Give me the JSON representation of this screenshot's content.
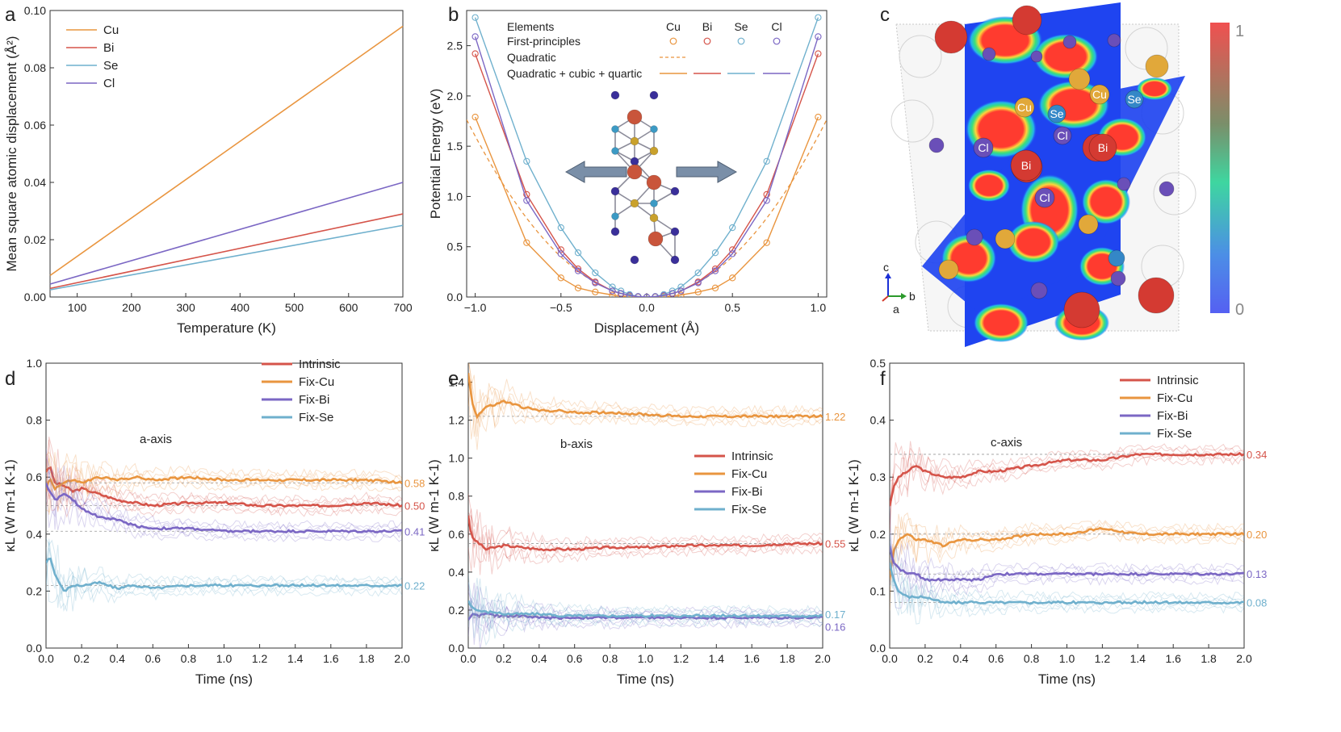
{
  "panels": {
    "a": {
      "label": "a"
    },
    "b": {
      "label": "b"
    },
    "c": {
      "label": "c"
    },
    "d": {
      "label": "d"
    },
    "e": {
      "label": "e"
    },
    "f": {
      "label": "f"
    }
  },
  "colors": {
    "Cu": "#e9953f",
    "Bi": "#d5544a",
    "Se": "#6fb0cd",
    "Cl": "#7b67c4"
  },
  "chart_data": [
    {
      "id": "a",
      "type": "line",
      "xlabel": "Temperature (K)",
      "ylabel": "Mean square atomic displacement (Å²)",
      "xlim": [
        50,
        700
      ],
      "ylim": [
        0,
        0.1
      ],
      "xticks": [
        100,
        200,
        300,
        400,
        500,
        600,
        700
      ],
      "yticks": [
        0.0,
        0.02,
        0.04,
        0.06,
        0.08,
        0.1
      ],
      "ytick_labels": [
        "0.00",
        "0.02",
        "0.04",
        "0.06",
        "0.08",
        "0.10"
      ],
      "series": [
        {
          "name": "Cu",
          "x": [
            50,
            700
          ],
          "y": [
            0.0075,
            0.0945
          ]
        },
        {
          "name": "Bi",
          "x": [
            50,
            700
          ],
          "y": [
            0.003,
            0.029
          ]
        },
        {
          "name": "Se",
          "x": [
            50,
            700
          ],
          "y": [
            0.0025,
            0.025
          ]
        },
        {
          "name": "Cl",
          "x": [
            50,
            700
          ],
          "y": [
            0.0045,
            0.04
          ]
        }
      ]
    },
    {
      "id": "b",
      "type": "line",
      "xlabel": "Displacement (Å)",
      "ylabel": "Potential Energy (eV)",
      "xlim": [
        -1.05,
        1.05
      ],
      "ylim": [
        0,
        2.85
      ],
      "xticks": [
        -1.0,
        -0.5,
        0.0,
        0.5,
        1.0
      ],
      "xtick_labels": [
        "−1.0",
        "−0.5",
        "0.0",
        "0.5",
        "1.0"
      ],
      "yticks": [
        0.0,
        0.5,
        1.0,
        1.5,
        2.0,
        2.5
      ],
      "ytick_labels": [
        "0.0",
        "0.5",
        "1.0",
        "1.5",
        "2.0",
        "2.5"
      ],
      "legend": {
        "header": "Elements",
        "columns": [
          "Cu",
          "Bi",
          "Se",
          "Cl"
        ],
        "rows": [
          "First-principles",
          "Quadratic",
          "Quadratic + cubic + quartic"
        ]
      },
      "quadratic_Cu": [
        -1.0,
        1.6,
        1.0,
        1.6
      ],
      "first_principles_x": [
        -1.0,
        -0.7,
        -0.5,
        -0.4,
        -0.3,
        -0.2,
        -0.15,
        -0.1,
        -0.05,
        0.0,
        0.05,
        0.1,
        0.15,
        0.2,
        0.3,
        0.4,
        0.5,
        0.7,
        1.0
      ],
      "series": [
        {
          "name": "Cu",
          "y": [
            1.79,
            0.54,
            0.19,
            0.09,
            0.05,
            0.02,
            0.01,
            0.005,
            0.002,
            0.0,
            0.002,
            0.005,
            0.01,
            0.02,
            0.05,
            0.09,
            0.19,
            0.54,
            1.79
          ]
        },
        {
          "name": "Bi",
          "y": [
            2.42,
            1.02,
            0.47,
            0.28,
            0.15,
            0.06,
            0.035,
            0.015,
            0.004,
            0.0,
            0.004,
            0.015,
            0.035,
            0.06,
            0.15,
            0.28,
            0.47,
            1.02,
            2.42
          ]
        },
        {
          "name": "Se",
          "y": [
            2.78,
            1.35,
            0.69,
            0.44,
            0.24,
            0.1,
            0.06,
            0.025,
            0.006,
            0.0,
            0.006,
            0.025,
            0.06,
            0.1,
            0.24,
            0.44,
            0.69,
            1.35,
            2.78
          ]
        },
        {
          "name": "Cl",
          "y": [
            2.59,
            0.96,
            0.43,
            0.26,
            0.14,
            0.06,
            0.035,
            0.015,
            0.004,
            0.0,
            0.004,
            0.015,
            0.035,
            0.06,
            0.14,
            0.26,
            0.43,
            0.96,
            2.59
          ]
        }
      ]
    },
    {
      "id": "c",
      "type": "heatmap",
      "colorbar_labels": [
        "1",
        "0"
      ],
      "atom_labels": [
        "Cu",
        "Se",
        "Cu",
        "Se",
        "Cl",
        "Cl",
        "Bi",
        "Bi",
        "Cl"
      ],
      "axes_labels": [
        "c",
        "b",
        "a"
      ]
    },
    {
      "id": "d",
      "type": "line",
      "annotation": "a-axis",
      "xlabel": "Time (ns)",
      "ylabel": "κL (W m-1 K-1)",
      "xlim": [
        0,
        2.0
      ],
      "ylim": [
        0,
        1.0
      ],
      "xticks": [
        0.0,
        0.2,
        0.4,
        0.6,
        0.8,
        1.0,
        1.2,
        1.4,
        1.6,
        1.8,
        2.0
      ],
      "xtick_labels": [
        "0.0",
        "0.2",
        "0.4",
        "0.6",
        "0.8",
        "1.0",
        "1.2",
        "1.4",
        "1.6",
        "1.8",
        "2.0"
      ],
      "yticks": [
        0.0,
        0.2,
        0.4,
        0.6,
        0.8,
        1.0
      ],
      "ytick_labels": [
        "0.0",
        "0.2",
        "0.4",
        "0.6",
        "0.8",
        "1.0"
      ],
      "x": [
        0.0,
        0.02,
        0.05,
        0.1,
        0.15,
        0.2,
        0.3,
        0.4,
        0.5,
        0.6,
        0.8,
        1.0,
        1.2,
        1.4,
        1.6,
        1.8,
        2.0
      ],
      "series": [
        {
          "name": "Intrinsic",
          "color": "Bi",
          "final": 0.5,
          "final_label": "0.50",
          "y": [
            0.62,
            0.64,
            0.58,
            0.57,
            0.55,
            0.56,
            0.54,
            0.52,
            0.51,
            0.5,
            0.51,
            0.51,
            0.5,
            0.5,
            0.5,
            0.51,
            0.5
          ]
        },
        {
          "name": "Fix-Cu",
          "color": "Cu",
          "final": 0.58,
          "final_label": "0.58",
          "y": [
            0.55,
            0.6,
            0.56,
            0.58,
            0.59,
            0.58,
            0.6,
            0.59,
            0.6,
            0.59,
            0.6,
            0.59,
            0.59,
            0.59,
            0.59,
            0.59,
            0.58
          ]
        },
        {
          "name": "Fix-Bi",
          "color": "Cl",
          "final": 0.41,
          "final_label": "0.41",
          "y": [
            0.58,
            0.55,
            0.52,
            0.54,
            0.52,
            0.49,
            0.46,
            0.45,
            0.43,
            0.42,
            0.42,
            0.41,
            0.41,
            0.41,
            0.41,
            0.41,
            0.41
          ]
        },
        {
          "name": "Fix-Se",
          "color": "Se",
          "final": 0.22,
          "final_label": "0.22",
          "y": [
            0.3,
            0.32,
            0.26,
            0.2,
            0.22,
            0.22,
            0.23,
            0.21,
            0.22,
            0.21,
            0.22,
            0.22,
            0.22,
            0.22,
            0.22,
            0.22,
            0.22
          ]
        }
      ]
    },
    {
      "id": "e",
      "type": "line",
      "annotation": "b-axis",
      "xlabel": "Time (ns)",
      "ylabel": "κL (W m-1 K-1)",
      "xlim": [
        0,
        2.0
      ],
      "ylim": [
        0,
        1.5
      ],
      "xticks": [
        0.0,
        0.2,
        0.4,
        0.6,
        0.8,
        1.0,
        1.2,
        1.4,
        1.6,
        1.8,
        2.0
      ],
      "xtick_labels": [
        "0.0",
        "0.2",
        "0.4",
        "0.6",
        "0.8",
        "1.0",
        "1.2",
        "1.4",
        "1.6",
        "1.8",
        "2.0"
      ],
      "yticks": [
        0.0,
        0.2,
        0.4,
        0.6,
        0.8,
        1.0,
        1.2,
        1.4
      ],
      "ytick_labels": [
        "0.0",
        "0.2",
        "0.4",
        "0.6",
        "0.8",
        "1.0",
        "1.2",
        "1.4"
      ],
      "x": [
        0.0,
        0.02,
        0.05,
        0.1,
        0.15,
        0.2,
        0.3,
        0.4,
        0.5,
        0.6,
        0.8,
        1.0,
        1.2,
        1.4,
        1.6,
        1.8,
        2.0
      ],
      "series": [
        {
          "name": "Intrinsic",
          "color": "Bi",
          "final": 0.55,
          "final_label": "0.55",
          "y": [
            0.7,
            0.58,
            0.56,
            0.52,
            0.53,
            0.54,
            0.53,
            0.52,
            0.52,
            0.52,
            0.53,
            0.53,
            0.54,
            0.54,
            0.54,
            0.55,
            0.55
          ]
        },
        {
          "name": "Fix-Cu",
          "color": "Cu",
          "final": 1.22,
          "final_label": "1.22",
          "y": [
            1.45,
            1.3,
            1.22,
            1.27,
            1.28,
            1.3,
            1.27,
            1.25,
            1.25,
            1.24,
            1.24,
            1.23,
            1.22,
            1.22,
            1.22,
            1.22,
            1.22
          ]
        },
        {
          "name": "Fix-Bi",
          "color": "Cl",
          "final": 0.16,
          "final_label": "0.16",
          "y": [
            0.15,
            0.18,
            0.17,
            0.18,
            0.17,
            0.17,
            0.17,
            0.16,
            0.16,
            0.16,
            0.16,
            0.16,
            0.16,
            0.16,
            0.16,
            0.16,
            0.16
          ]
        },
        {
          "name": "Fix-Se",
          "color": "Se",
          "final": 0.17,
          "final_label": "0.17",
          "y": [
            0.25,
            0.21,
            0.2,
            0.19,
            0.19,
            0.18,
            0.18,
            0.18,
            0.17,
            0.17,
            0.17,
            0.17,
            0.17,
            0.17,
            0.17,
            0.17,
            0.17
          ]
        }
      ]
    },
    {
      "id": "f",
      "type": "line",
      "annotation": "c-axis",
      "xlabel": "Time (ns)",
      "ylabel": "κL (W m-1 K-1)",
      "xlim": [
        0,
        2.0
      ],
      "ylim": [
        0,
        0.5
      ],
      "xticks": [
        0.0,
        0.2,
        0.4,
        0.6,
        0.8,
        1.0,
        1.2,
        1.4,
        1.6,
        1.8,
        2.0
      ],
      "xtick_labels": [
        "0.0",
        "0.2",
        "0.4",
        "0.6",
        "0.8",
        "1.0",
        "1.2",
        "1.4",
        "1.6",
        "1.8",
        "2.0"
      ],
      "yticks": [
        0.0,
        0.1,
        0.2,
        0.3,
        0.4,
        0.5
      ],
      "ytick_labels": [
        "0.0",
        "0.1",
        "0.2",
        "0.3",
        "0.4",
        "0.5"
      ],
      "x": [
        0.0,
        0.02,
        0.05,
        0.1,
        0.15,
        0.2,
        0.3,
        0.4,
        0.5,
        0.6,
        0.8,
        1.0,
        1.2,
        1.4,
        1.6,
        1.8,
        2.0
      ],
      "series": [
        {
          "name": "Intrinsic",
          "color": "Bi",
          "final": 0.34,
          "final_label": "0.34",
          "y": [
            0.25,
            0.28,
            0.3,
            0.31,
            0.32,
            0.31,
            0.3,
            0.3,
            0.31,
            0.31,
            0.32,
            0.33,
            0.33,
            0.34,
            0.34,
            0.34,
            0.34
          ]
        },
        {
          "name": "Fix-Cu",
          "color": "Cu",
          "final": 0.2,
          "final_label": "0.20",
          "y": [
            0.12,
            0.17,
            0.19,
            0.2,
            0.19,
            0.19,
            0.18,
            0.19,
            0.19,
            0.19,
            0.2,
            0.2,
            0.21,
            0.2,
            0.2,
            0.2,
            0.2
          ]
        },
        {
          "name": "Fix-Bi",
          "color": "Cl",
          "final": 0.13,
          "final_label": "0.13",
          "y": [
            0.18,
            0.15,
            0.14,
            0.13,
            0.13,
            0.12,
            0.12,
            0.12,
            0.12,
            0.13,
            0.13,
            0.13,
            0.13,
            0.13,
            0.13,
            0.13,
            0.13
          ]
        },
        {
          "name": "Fix-Se",
          "color": "Se",
          "final": 0.08,
          "final_label": "0.08",
          "y": [
            0.15,
            0.12,
            0.1,
            0.09,
            0.09,
            0.09,
            0.08,
            0.08,
            0.08,
            0.08,
            0.08,
            0.08,
            0.08,
            0.08,
            0.08,
            0.08,
            0.08
          ]
        }
      ]
    }
  ]
}
